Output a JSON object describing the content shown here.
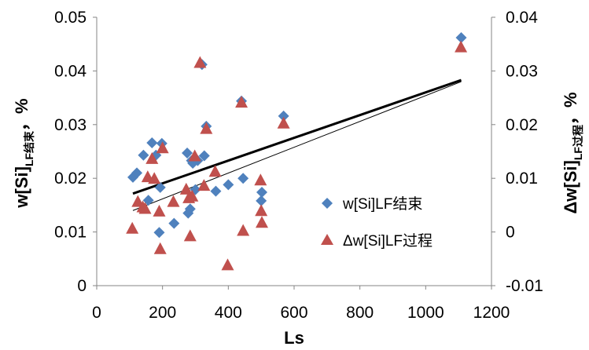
{
  "chart_data": {
    "type": "scatter",
    "xlabel": "Ls",
    "ylabel": {
      "main": "w[Si]",
      "sub": "LF结束",
      "tail": "，%"
    },
    "y2label": {
      "main": "Δw[Si]",
      "sub": "LF过程",
      "tail": "，%"
    },
    "xlim": [
      0,
      1200
    ],
    "ylim": [
      0,
      0.05
    ],
    "y2lim": [
      -0.01,
      0.04
    ],
    "x_ticks": [
      "0",
      "200",
      "400",
      "600",
      "800",
      "1000",
      "1200"
    ],
    "y_ticks": [
      "0",
      "0.01",
      "0.02",
      "0.03",
      "0.04",
      "0.05"
    ],
    "y2_ticks": [
      "-0.01",
      "0",
      "0.01",
      "0.02",
      "0.03",
      "0.04"
    ],
    "grid": false,
    "legend_position": "right-center",
    "series": [
      {
        "name": "w[Si]LF结束",
        "marker": "diamond",
        "color": "#4f81bd",
        "axis": "left",
        "points": [
          [
            110,
            0.0202
          ],
          [
            122,
            0.021
          ],
          [
            142,
            0.0243
          ],
          [
            157,
            0.0159
          ],
          [
            168,
            0.0266
          ],
          [
            180,
            0.0243
          ],
          [
            190,
            0.0099
          ],
          [
            193,
            0.0183
          ],
          [
            198,
            0.0265
          ],
          [
            235,
            0.0116
          ],
          [
            275,
            0.0247
          ],
          [
            278,
            0.0135
          ],
          [
            284,
            0.0143
          ],
          [
            288,
            0.0233
          ],
          [
            292,
            0.0228
          ],
          [
            300,
            0.0179
          ],
          [
            307,
            0.0233
          ],
          [
            320,
            0.0412
          ],
          [
            327,
            0.0242
          ],
          [
            333,
            0.0297
          ],
          [
            362,
            0.0176
          ],
          [
            400,
            0.0188
          ],
          [
            440,
            0.0344
          ],
          [
            445,
            0.02
          ],
          [
            500,
            0.0158
          ],
          [
            502,
            0.0174
          ],
          [
            568,
            0.0316
          ],
          [
            1108,
            0.0462
          ]
        ]
      },
      {
        "name": "Δw[Si]LF过程",
        "marker": "triangle",
        "color": "#c0504d",
        "axis": "right",
        "points": [
          [
            108,
            0.0007
          ],
          [
            125,
            0.0057
          ],
          [
            140,
            0.0047
          ],
          [
            147,
            0.0044
          ],
          [
            155,
            0.0103
          ],
          [
            168,
            0.0137
          ],
          [
            175,
            0.01
          ],
          [
            190,
            0.0039
          ],
          [
            193,
            -0.0031
          ],
          [
            200,
            0.0157
          ],
          [
            233,
            0.0057
          ],
          [
            272,
            0.008
          ],
          [
            280,
            0.0064
          ],
          [
            284,
            -0.0007
          ],
          [
            290,
            0.0067
          ],
          [
            298,
            0.0142
          ],
          [
            314,
            0.0316
          ],
          [
            326,
            0.0087
          ],
          [
            333,
            0.0193
          ],
          [
            360,
            0.0113
          ],
          [
            398,
            -0.0061
          ],
          [
            440,
            0.0242
          ],
          [
            445,
            0.0003
          ],
          [
            498,
            0.0097
          ],
          [
            500,
            0.004
          ],
          [
            502,
            0.0018
          ],
          [
            568,
            0.0203
          ],
          [
            1107,
            0.0345
          ]
        ]
      }
    ],
    "trendlines": [
      {
        "style": "thick",
        "x": [
          110,
          1108
        ],
        "y": [
          0.01715,
          0.0383
        ]
      },
      {
        "style": "thin",
        "x": [
          110,
          1108
        ],
        "y": [
          0.014,
          0.038
        ]
      }
    ]
  }
}
